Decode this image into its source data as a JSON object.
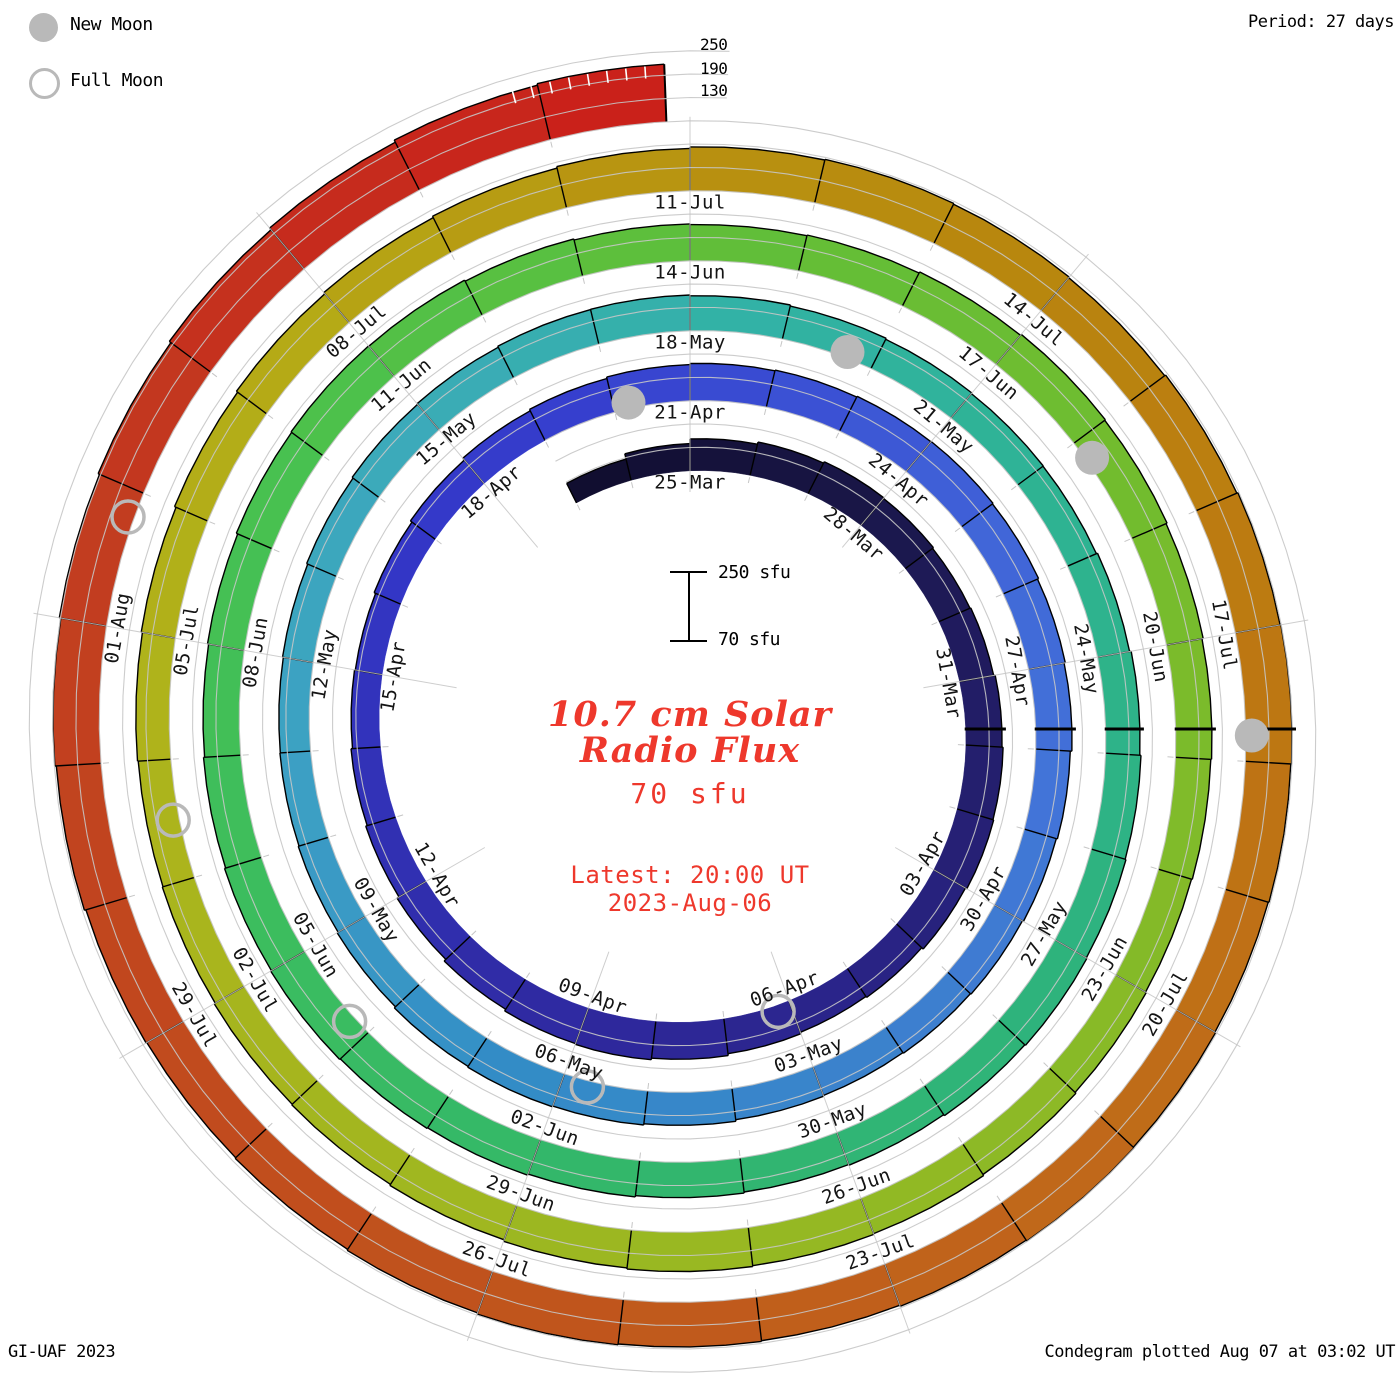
{
  "legend": {
    "new_moon": "New Moon",
    "full_moon": "Full Moon"
  },
  "header": {
    "period_label": "Period: 27 days"
  },
  "footer": {
    "left": "GI-UAF 2023",
    "right": "Condegram plotted Aug 07 at 03:02 UT"
  },
  "radial_axis": {
    "labels": [
      "250",
      "190",
      "130"
    ]
  },
  "scale_bar": {
    "top_label": "250 sfu",
    "bottom_label": "70 sfu"
  },
  "center": {
    "title_line1": "10.7 cm Solar",
    "title_line2": "Radio Flux",
    "baseline_value": "70 sfu",
    "latest_line1": "Latest: 20:00 UT",
    "latest_line2": "2023-Aug-06"
  },
  "chart_data": {
    "type": "spiral_polar_bar_condegram",
    "title": "10.7 cm Solar Radio Flux",
    "units": "sfu",
    "start_date": "2023-03-23",
    "end_date": "2023-08-06",
    "period_days": 27,
    "days_per_label": 3,
    "flux_baseline_sfu": 70,
    "flux_max_sfu": 250,
    "grid_levels_sfu": [
      130,
      190,
      250
    ],
    "last_day_fraction": 0.833,
    "date_labels": [
      "25-Mar",
      "28-Mar",
      "31-Mar",
      "03-Apr",
      "06-Apr",
      "09-Apr",
      "12-Apr",
      "15-Apr",
      "18-Apr",
      "21-Apr",
      "24-Apr",
      "27-Apr",
      "30-Apr",
      "03-May",
      "06-May",
      "09-May",
      "12-May",
      "15-May",
      "18-May",
      "21-May",
      "24-May",
      "27-May",
      "30-May",
      "02-Jun",
      "05-Jun",
      "08-Jun",
      "11-Jun",
      "14-Jun",
      "17-Jun",
      "20-Jun",
      "23-Jun",
      "26-Jun",
      "29-Jun",
      "02-Jul",
      "05-Jul",
      "08-Jul",
      "11-Jul",
      "14-Jul",
      "17-Jul",
      "20-Jul",
      "23-Jul",
      "26-Jul",
      "29-Jul",
      "01-Aug"
    ],
    "flux_sfu": [
      126,
      140,
      152,
      158,
      162,
      160,
      157,
      159,
      163,
      166,
      168,
      164,
      159,
      156,
      160,
      165,
      169,
      167,
      162,
      156,
      150,
      146,
      142,
      140,
      144,
      149,
      155,
      159,
      163,
      166,
      168,
      170,
      171,
      169,
      166,
      163,
      159,
      156,
      153,
      151,
      149,
      151,
      155,
      158,
      160,
      158,
      154,
      151,
      149,
      148,
      150,
      153,
      156,
      158,
      161,
      162,
      160,
      157,
      154,
      152,
      151,
      154,
      158,
      161,
      163,
      165,
      163,
      160,
      158,
      161,
      164,
      167,
      169,
      171,
      169,
      166,
      163,
      166,
      170,
      172,
      171,
      168,
      165,
      163,
      165,
      168,
      171,
      169,
      166,
      163,
      161,
      159,
      161,
      164,
      167,
      169,
      171,
      168,
      164,
      161,
      159,
      156,
      154,
      156,
      159,
      163,
      167,
      171,
      175,
      179,
      183,
      185,
      183,
      181,
      184,
      187,
      189,
      187,
      185,
      187,
      189,
      186,
      183,
      185,
      187,
      184,
      181,
      179,
      181,
      185,
      189,
      193,
      197,
      202,
      208,
      214,
      218
    ],
    "color_stops": [
      [
        0,
        "#110e30"
      ],
      [
        4,
        "#191646"
      ],
      [
        8,
        "#221d66"
      ],
      [
        12,
        "#292384"
      ],
      [
        16,
        "#2e289c"
      ],
      [
        20,
        "#3130b2"
      ],
      [
        24,
        "#3336c6"
      ],
      [
        27,
        "#363fce"
      ],
      [
        30,
        "#3b51d4"
      ],
      [
        33,
        "#4166d8"
      ],
      [
        36,
        "#4274d8"
      ],
      [
        40,
        "#3b82cc"
      ],
      [
        44,
        "#338cc6"
      ],
      [
        48,
        "#3c9fc4"
      ],
      [
        52,
        "#3caaba"
      ],
      [
        56,
        "#32b2a6"
      ],
      [
        60,
        "#2eb392"
      ],
      [
        65,
        "#2eb37c"
      ],
      [
        70,
        "#33b76a"
      ],
      [
        74,
        "#3cbd5e"
      ],
      [
        78,
        "#48c150"
      ],
      [
        82,
        "#5dbf3c"
      ],
      [
        87,
        "#72bc2e"
      ],
      [
        91,
        "#84ba28"
      ],
      [
        95,
        "#95b823"
      ],
      [
        99,
        "#a3b61f"
      ],
      [
        103,
        "#afb31b"
      ],
      [
        106,
        "#b5aa16"
      ],
      [
        109,
        "#b89511"
      ],
      [
        112,
        "#b8870e"
      ],
      [
        116,
        "#bd7712"
      ],
      [
        120,
        "#c0681a"
      ],
      [
        124,
        "#c0551c"
      ],
      [
        128,
        "#c1471e"
      ],
      [
        131,
        "#c23d20"
      ],
      [
        134,
        "#c62b1d"
      ],
      [
        136,
        "#ca211a"
      ]
    ],
    "full_moon_days": [
      14.2,
      43.7,
      73.2,
      102.5,
      131.8
    ],
    "new_moon_days": [
      28.2,
      57.7,
      87.2,
      116.8
    ],
    "colors": {
      "grid": "#c6c6c6",
      "day_tick": "#000000",
      "moon": "#b9b9b9",
      "label_text": "#141414",
      "accent_red": "#ee382c",
      "end_dash": "#ffffff"
    }
  }
}
